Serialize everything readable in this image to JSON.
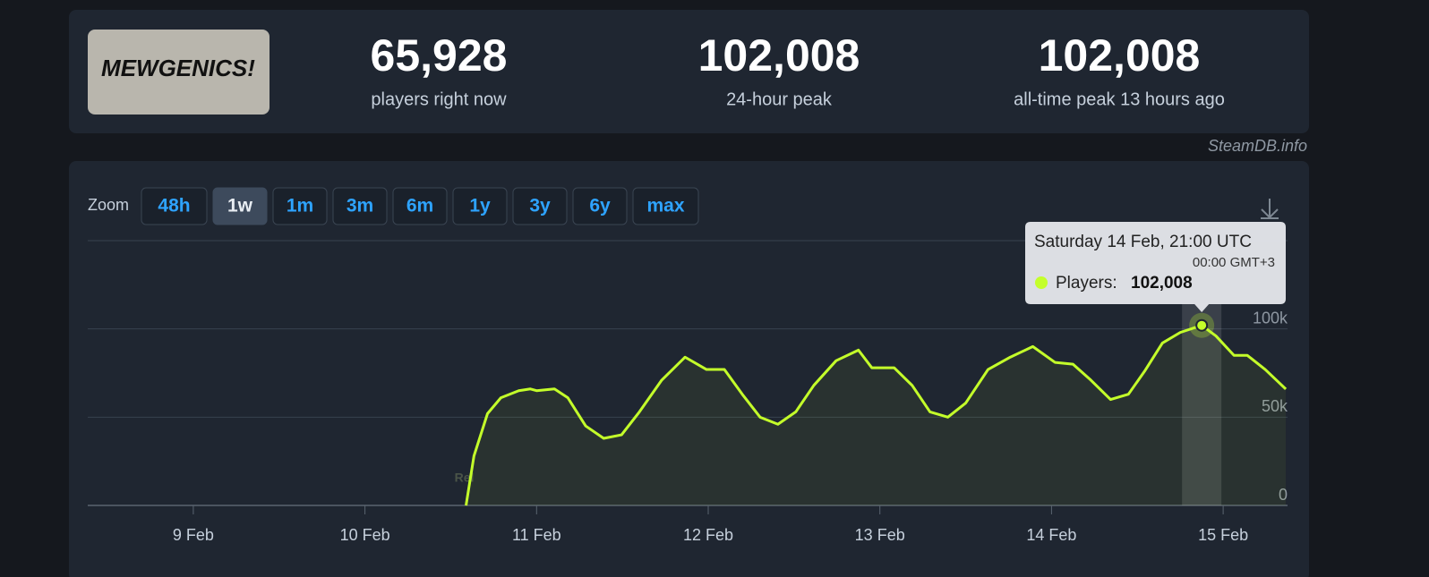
{
  "header": {
    "game_logo": "MEWGENICS!",
    "stats": [
      {
        "value": "65,928",
        "label": "players right now"
      },
      {
        "value": "102,008",
        "label": "24-hour peak"
      },
      {
        "value": "102,008",
        "label": "all-time peak 13 hours ago"
      }
    ],
    "credit": "SteamDB.info"
  },
  "zoom": {
    "label": "Zoom",
    "buttons": [
      "48h",
      "1w",
      "1m",
      "3m",
      "6m",
      "1y",
      "3y",
      "6y",
      "max"
    ],
    "active": "1w"
  },
  "chart_data": {
    "type": "line",
    "x": [
      10.589,
      10.635,
      10.714,
      10.792,
      10.896,
      10.964,
      11.0,
      11.104,
      11.182,
      11.286,
      11.391,
      11.495,
      11.599,
      11.729,
      11.865,
      11.99,
      12.094,
      12.198,
      12.302,
      12.406,
      12.51,
      12.615,
      12.745,
      12.875,
      12.953,
      13.083,
      13.188,
      13.292,
      13.396,
      13.5,
      13.63,
      13.76,
      13.891,
      14.021,
      14.125,
      14.229,
      14.344,
      14.448,
      14.542,
      14.646,
      14.75,
      14.875,
      14.958,
      15.063,
      15.141,
      15.245,
      15.365
    ],
    "series": [
      {
        "name": "Players",
        "color": "#c4ff2a",
        "values": [
          0,
          28000,
          52000,
          61000,
          65000,
          66000,
          65000,
          66000,
          61000,
          45000,
          38000,
          40000,
          53000,
          71000,
          84000,
          77000,
          77000,
          63000,
          50000,
          46000,
          53000,
          68000,
          82000,
          88000,
          78000,
          78000,
          68000,
          53000,
          50000,
          58000,
          77000,
          84000,
          90000,
          81000,
          80000,
          71000,
          60000,
          63000,
          76000,
          92000,
          98000,
          102008,
          96000,
          85000,
          85000,
          77000,
          65928
        ]
      }
    ],
    "xlim": [
      8.385,
      15.375
    ],
    "xticks": [
      {
        "value": 9,
        "label": "9 Feb"
      },
      {
        "value": 10,
        "label": "10 Feb"
      },
      {
        "value": 11,
        "label": "11 Feb"
      },
      {
        "value": 12,
        "label": "12 Feb"
      },
      {
        "value": 13,
        "label": "13 Feb"
      },
      {
        "value": 14,
        "label": "14 Feb"
      },
      {
        "value": 15,
        "label": "15 Feb"
      }
    ],
    "ylim": [
      0,
      150000
    ],
    "yticks": [
      0,
      {
        "value": 50000,
        "label": "50k"
      },
      {
        "value": 100000,
        "label": "100k"
      }
    ],
    "grid": true,
    "annotation": {
      "x": 10.589,
      "label": "Rel"
    },
    "tooltip": {
      "index": 41,
      "title": "Saturday 14 Feb, 21:00 UTC",
      "subtitle": "00:00 GMT+3",
      "series_label": "Players:",
      "value_label": "102,008"
    }
  }
}
